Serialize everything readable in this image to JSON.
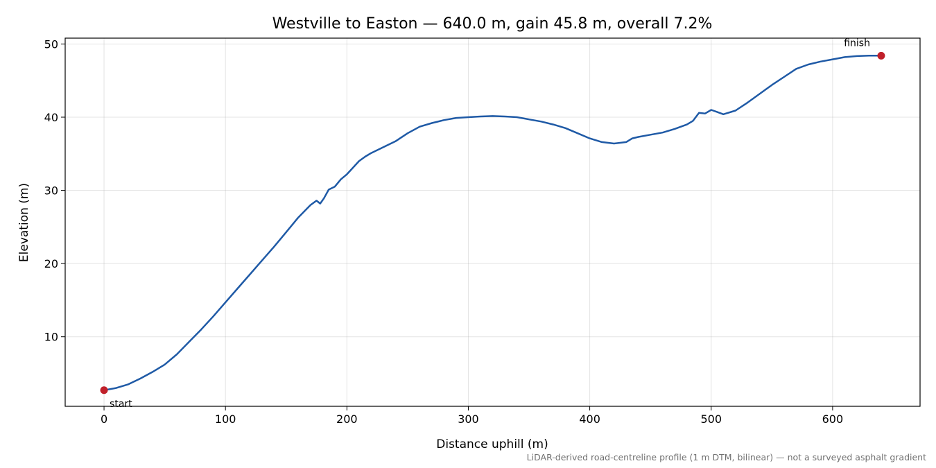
{
  "chart_data": {
    "type": "line",
    "title": "Westville to Easton — 640.0 m, gain 45.8 m, overall 7.2%",
    "xlabel": "Distance uphill (m)",
    "ylabel": "Elevation (m)",
    "footnote": "LiDAR-derived road-centreline profile (1 m DTM, bilinear) — not a surveyed asphalt gradient",
    "xlim": [
      -32,
      672
    ],
    "ylim": [
      0.5,
      50.8
    ],
    "xticks": [
      0,
      100,
      200,
      300,
      400,
      500,
      600
    ],
    "yticks": [
      10,
      20,
      30,
      40,
      50
    ],
    "grid": true,
    "line_color": "#1f5aa6",
    "marker_color": "#c0202a",
    "series": [
      {
        "x": [
          0,
          10,
          20,
          30,
          40,
          50,
          60,
          70,
          80,
          90,
          100,
          110,
          120,
          130,
          140,
          150,
          160,
          170,
          175,
          178,
          181,
          185,
          190,
          195,
          200,
          205,
          210,
          215,
          220,
          230,
          240,
          250,
          260,
          270,
          280,
          290,
          300,
          310,
          320,
          330,
          340,
          350,
          360,
          370,
          380,
          390,
          400,
          410,
          420,
          430,
          435,
          440,
          450,
          460,
          470,
          480,
          485,
          490,
          495,
          500,
          505,
          510,
          520,
          530,
          540,
          550,
          560,
          570,
          580,
          590,
          600,
          610,
          620,
          630,
          640
        ],
        "y": [
          2.7,
          3.0,
          3.5,
          4.3,
          5.2,
          6.2,
          7.6,
          9.3,
          11.0,
          12.8,
          14.7,
          16.6,
          18.5,
          20.4,
          22.3,
          24.3,
          26.3,
          28.0,
          28.6,
          28.2,
          28.9,
          30.1,
          30.5,
          31.5,
          32.2,
          33.1,
          34.0,
          34.6,
          35.1,
          35.9,
          36.7,
          37.8,
          38.7,
          39.2,
          39.6,
          39.9,
          40.0,
          40.1,
          40.15,
          40.1,
          40.0,
          39.7,
          39.4,
          39.0,
          38.5,
          37.8,
          37.1,
          36.6,
          36.4,
          36.6,
          37.1,
          37.3,
          37.6,
          37.9,
          38.4,
          39.0,
          39.5,
          40.6,
          40.5,
          41.0,
          40.7,
          40.4,
          40.9,
          42.0,
          43.2,
          44.4,
          45.5,
          46.6,
          47.2,
          47.6,
          47.9,
          48.2,
          48.35,
          48.4,
          48.4
        ]
      }
    ],
    "annotations": [
      {
        "label": "start",
        "x": 0,
        "y": 2.7
      },
      {
        "label": "finish",
        "x": 640,
        "y": 48.4
      }
    ]
  }
}
